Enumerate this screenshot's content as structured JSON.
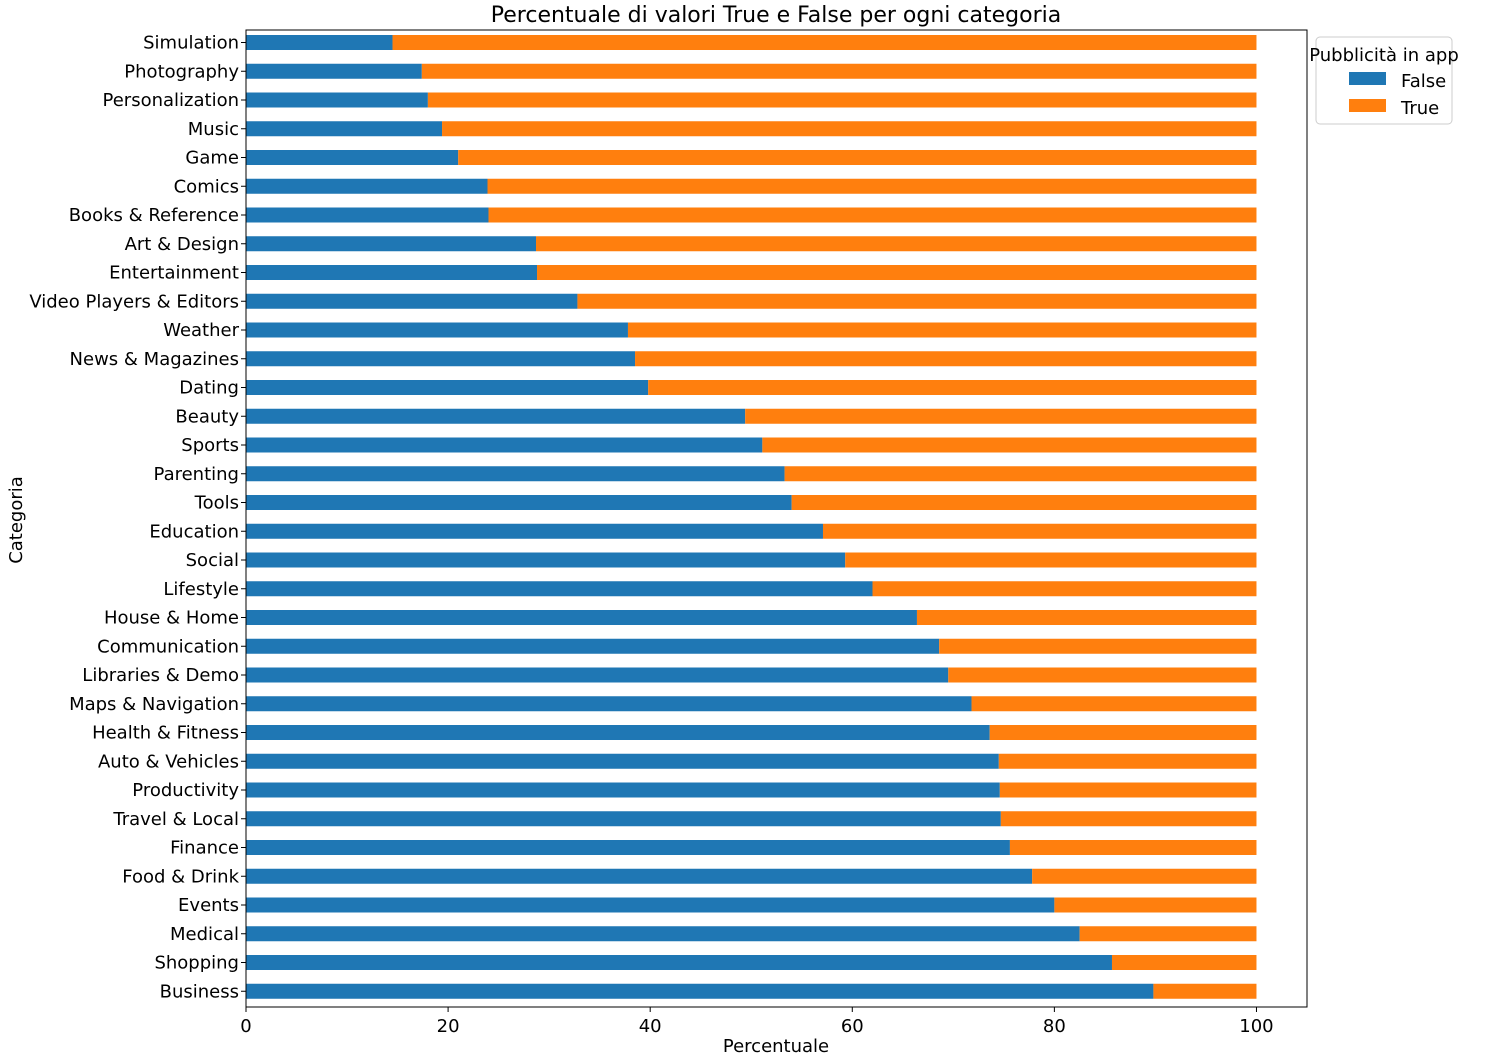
{
  "chart_data": {
    "type": "bar",
    "orientation": "horizontal",
    "stacked": true,
    "title": "Percentuale di valori True e False per ogni categoria",
    "xlabel": "Percentuale",
    "ylabel": "Categoria",
    "xlim": [
      0,
      105
    ],
    "xticks": [
      "0",
      "20",
      "40",
      "60",
      "80",
      "100"
    ],
    "grid": false,
    "legend": {
      "title": "Pubblicità in app",
      "placement": "outside-top-right"
    },
    "categories": [
      "Simulation",
      "Photography",
      "Personalization",
      "Music",
      "Game",
      "Comics",
      "Books & Reference",
      "Art & Design",
      "Entertainment",
      "Video Players & Editors",
      "Weather",
      "News & Magazines",
      "Dating",
      "Beauty",
      "Sports",
      "Parenting",
      "Tools",
      "Education",
      "Social",
      "Lifestyle",
      "House & Home",
      "Communication",
      "Libraries & Demo",
      "Maps & Navigation",
      "Health & Fitness",
      "Auto & Vehicles",
      "Productivity",
      "Travel & Local",
      "Finance",
      "Food & Drink",
      "Events",
      "Medical",
      "Shopping",
      "Business"
    ],
    "series": [
      {
        "name": "False",
        "color": "#1f77b4",
        "values": [
          14.5,
          17.4,
          18.0,
          19.4,
          21.0,
          23.9,
          24.0,
          28.7,
          28.8,
          32.8,
          37.8,
          38.5,
          39.8,
          49.4,
          51.1,
          53.3,
          54.0,
          57.1,
          59.3,
          62.0,
          66.4,
          68.6,
          69.5,
          71.8,
          73.6,
          74.5,
          74.6,
          74.7,
          75.6,
          77.8,
          80.0,
          82.5,
          85.7,
          89.8
        ]
      },
      {
        "name": "True",
        "color": "#ff7f0e",
        "values": [
          85.5,
          82.6,
          82.0,
          80.6,
          79.0,
          76.1,
          76.0,
          71.3,
          71.2,
          67.2,
          62.2,
          61.5,
          60.2,
          50.6,
          48.9,
          46.7,
          46.0,
          42.9,
          40.7,
          38.0,
          33.6,
          31.4,
          30.5,
          28.2,
          26.4,
          25.5,
          25.4,
          25.3,
          24.4,
          22.2,
          20.0,
          17.5,
          14.3,
          10.2
        ]
      }
    ]
  }
}
